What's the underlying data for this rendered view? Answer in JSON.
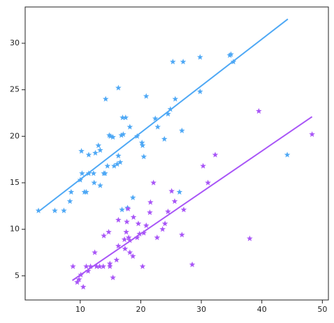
{
  "chart_data": {
    "type": "scatter",
    "xlim": [
      0.9,
      51
    ],
    "ylim": [
      2.4,
      33.9
    ],
    "xticks": [
      10,
      20,
      30,
      40,
      50
    ],
    "yticks": [
      5,
      10,
      15,
      20,
      25,
      30
    ],
    "marker": "star",
    "series": [
      {
        "color": "#4ea8f5",
        "x": [
          3.1,
          5.8,
          7.3,
          8.3,
          8.5,
          10,
          10.2,
          10.3,
          10.7,
          11,
          11.4,
          11.4,
          12.2,
          12.3,
          12.5,
          13,
          13.3,
          13.3,
          13.9,
          14.1,
          14.2,
          14.5,
          14.8,
          15,
          15.4,
          15.6,
          16.1,
          16.3,
          16.3,
          16.6,
          16.8,
          17,
          17.1,
          17.5,
          18.2,
          16.9,
          17.8,
          18.7,
          19.4,
          20.2,
          20.3,
          20.5,
          20.9,
          22.4,
          22.8,
          23.9,
          24.5,
          24.9,
          25.3,
          25.7,
          26.4,
          27,
          26.8,
          29.8,
          29.8,
          34.7,
          34.9,
          35.3,
          44.2
        ],
        "y": [
          12,
          12,
          12,
          13,
          14,
          15.3,
          18.4,
          16,
          14,
          14,
          16,
          18,
          16,
          15,
          18.2,
          19,
          18.5,
          14.7,
          16,
          16,
          24,
          16.8,
          20.1,
          20,
          19.9,
          16.8,
          17,
          25.2,
          17.9,
          17.2,
          20.1,
          22,
          20.2,
          22,
          21,
          12.1,
          12.3,
          13.4,
          20,
          19.3,
          19,
          17.8,
          24.3,
          21.9,
          21,
          19.7,
          22.4,
          22.9,
          28,
          24,
          14,
          28,
          20.6,
          28.5,
          24.8,
          28.7,
          28.8,
          28,
          18
        ]
      },
      {
        "color": "#a855f7",
        "x": [
          8.8,
          9.5,
          9.8,
          10.1,
          10.5,
          11,
          11.3,
          11.7,
          12.4,
          12.7,
          13.2,
          13.8,
          13.9,
          14.7,
          14.9,
          14.9,
          15.4,
          16,
          16.3,
          16.3,
          17.3,
          17.4,
          17.6,
          17.7,
          17.9,
          18,
          18.2,
          18.2,
          18.7,
          18.8,
          19.4,
          19.6,
          19.8,
          20.3,
          20.5,
          20.9,
          21.5,
          21.6,
          22.1,
          22.7,
          23.6,
          24,
          24.5,
          25.1,
          25.6,
          26.8,
          27.1,
          28.5,
          30.3,
          31.1,
          32.3,
          38,
          39.5,
          48.3
        ],
        "y": [
          6,
          4.3,
          4.6,
          5.1,
          3.8,
          6,
          5.5,
          6,
          7.5,
          6,
          6,
          6,
          9.3,
          9.7,
          6,
          6.3,
          4.8,
          6.7,
          11,
          8.2,
          8.9,
          7.9,
          9.7,
          10.8,
          12.2,
          9.1,
          8.8,
          7.5,
          7.1,
          11.3,
          9.1,
          10.6,
          9.5,
          6,
          9.6,
          10.4,
          11.8,
          12.9,
          15,
          9.1,
          10,
          10.6,
          11.9,
          14.1,
          13,
          9.4,
          12.1,
          6.2,
          16.8,
          15,
          18,
          9,
          22.7,
          20.2
        ]
      }
    ],
    "fits": [
      {
        "color": "#4ea8f5",
        "x": [
          3.3,
          44.3
        ],
        "y": [
          12,
          32.6
        ]
      },
      {
        "color": "#a855f7",
        "x": [
          8.7,
          48.3
        ],
        "y": [
          4.5,
          22.1
        ]
      }
    ]
  }
}
